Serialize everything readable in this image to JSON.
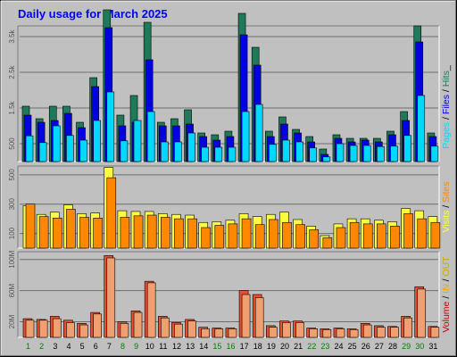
{
  "title": "Daily usage for March 2025",
  "colors": {
    "title": "#0000ff",
    "frame_bg": "#c0c0c0",
    "grid": "#6e6e6e",
    "hits": "#1f7a5a",
    "files": "#0000e0",
    "pages": "#00d8ff",
    "visits": "#ffff40",
    "sites": "#ff8800",
    "kbytes": "#e85030",
    "kbytes_light": "#f0a070",
    "weekday": "#008000",
    "weekend": "#008000",
    "text_dark": "#000000",
    "volume_label": "#cc0000",
    "in_label": "#ffa500",
    "out_label": "#ccaa00"
  },
  "chart_data": [
    {
      "type": "bar",
      "name": "hits-files-pages",
      "side_label": {
        "pages": "Pages",
        "sep1": " / ",
        "files": "Files",
        "sep2": " / ",
        "hits": "Hits",
        "suffix": "_"
      },
      "categories": [
        "1",
        "2",
        "3",
        "4",
        "5",
        "6",
        "7",
        "8",
        "9",
        "10",
        "11",
        "12",
        "13",
        "14",
        "15",
        "16",
        "17",
        "18",
        "19",
        "20",
        "21",
        "22",
        "23",
        "24",
        "25",
        "26",
        "27",
        "28",
        "29",
        "30",
        "31"
      ],
      "ylim": [
        0,
        3800
      ],
      "yticks": [
        500,
        1500,
        2500,
        3500
      ],
      "yticklabels": [
        "500",
        "1.5k",
        "2.5k",
        "3.5k"
      ],
      "series": [
        {
          "name": "Hits",
          "values": [
            1550,
            1200,
            1550,
            1550,
            1100,
            2350,
            4250,
            1300,
            1850,
            3900,
            1100,
            1200,
            1450,
            800,
            750,
            850,
            4150,
            3200,
            850,
            1250,
            900,
            700,
            350,
            750,
            650,
            650,
            650,
            850,
            1400,
            3800,
            800
          ]
        },
        {
          "name": "Files",
          "values": [
            1300,
            1100,
            1150,
            1350,
            950,
            2100,
            3750,
            1000,
            1100,
            2850,
            1000,
            1000,
            1050,
            700,
            600,
            700,
            3550,
            2700,
            700,
            1050,
            800,
            550,
            200,
            650,
            550,
            600,
            550,
            750,
            1150,
            3350,
            700
          ]
        },
        {
          "name": "Pages",
          "values": [
            720,
            530,
            1000,
            730,
            600,
            1150,
            1950,
            580,
            1150,
            1400,
            550,
            550,
            800,
            400,
            400,
            400,
            1400,
            1600,
            480,
            600,
            550,
            380,
            130,
            500,
            450,
            450,
            420,
            430,
            730,
            1850,
            430
          ]
        }
      ]
    },
    {
      "type": "bar",
      "name": "visits-sites",
      "side_label": {
        "visits": "Visits",
        "sep": " / ",
        "sites": "Sites"
      },
      "categories": [
        "1",
        "2",
        "3",
        "4",
        "5",
        "6",
        "7",
        "8",
        "9",
        "10",
        "11",
        "12",
        "13",
        "14",
        "15",
        "16",
        "17",
        "18",
        "19",
        "20",
        "21",
        "22",
        "23",
        "24",
        "25",
        "26",
        "27",
        "28",
        "29",
        "30",
        "31"
      ],
      "ylim": [
        0,
        560
      ],
      "yticks": [
        100,
        300,
        500
      ],
      "yticklabels": [
        "100",
        "300",
        "500"
      ],
      "series": [
        {
          "name": "Visits",
          "values": [
            290,
            230,
            245,
            295,
            235,
            240,
            550,
            255,
            250,
            250,
            235,
            230,
            225,
            175,
            180,
            190,
            235,
            215,
            230,
            245,
            195,
            150,
            85,
            165,
            200,
            200,
            190,
            180,
            270,
            255,
            215
          ]
        },
        {
          "name": "Sites",
          "values": [
            300,
            215,
            205,
            265,
            210,
            205,
            480,
            210,
            220,
            225,
            210,
            200,
            200,
            140,
            155,
            165,
            200,
            160,
            195,
            175,
            160,
            125,
            70,
            140,
            175,
            165,
            165,
            150,
            235,
            200,
            175
          ]
        }
      ]
    },
    {
      "type": "bar",
      "name": "volume",
      "side_label": {
        "volume": "Volume",
        "sep1": " / ",
        "in": "IN",
        "sep2": " / ",
        "out": "OUT"
      },
      "categories": [
        "1",
        "2",
        "3",
        "4",
        "5",
        "6",
        "7",
        "8",
        "9",
        "10",
        "11",
        "12",
        "13",
        "14",
        "15",
        "16",
        "17",
        "18",
        "19",
        "20",
        "21",
        "22",
        "23",
        "24",
        "25",
        "26",
        "27",
        "28",
        "29",
        "30",
        "31"
      ],
      "ylim": [
        0,
        110
      ],
      "yticks": [
        20,
        60,
        100
      ],
      "yticklabels": [
        "20M",
        "60M",
        "100M"
      ],
      "series": [
        {
          "name": "KBytes",
          "values": [
            24,
            23,
            27,
            22,
            18,
            32,
            105,
            20,
            34,
            72,
            27,
            19,
            23,
            13,
            12,
            12,
            60,
            55,
            15,
            21,
            21,
            12,
            11,
            12,
            11,
            18,
            15,
            14,
            27,
            65,
            14
          ]
        },
        {
          "name": "KBytes_out",
          "values": [
            22,
            22,
            24,
            19,
            16,
            30,
            102,
            18,
            32,
            70,
            25,
            17,
            21,
            11,
            11,
            11,
            55,
            51,
            13,
            19,
            19,
            11,
            10,
            11,
            10,
            16,
            13,
            13,
            25,
            62,
            13
          ]
        }
      ]
    }
  ],
  "weekend_days": [
    1,
    2,
    8,
    9,
    15,
    16,
    22,
    23,
    29,
    30
  ]
}
